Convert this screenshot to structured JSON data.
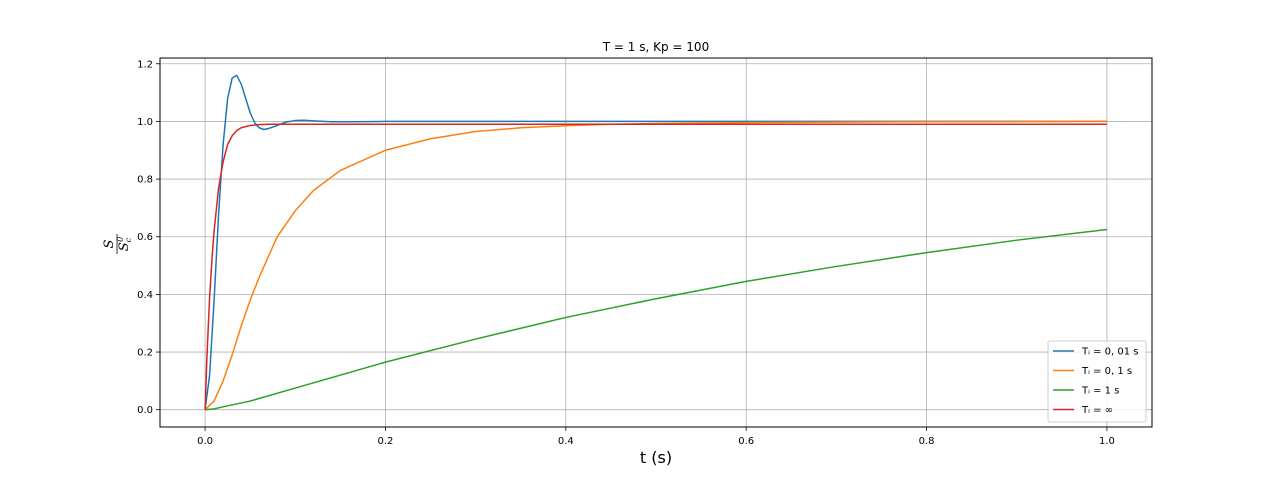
{
  "chart_data": {
    "type": "line",
    "title": "T = 1 s, Kp = 100",
    "xlabel": "t (s)",
    "ylabel": "S / S_c^0",
    "xlim": [
      -0.05,
      1.05
    ],
    "ylim": [
      -0.06,
      1.22
    ],
    "xticks": [
      0.0,
      0.2,
      0.4,
      0.6,
      0.8,
      1.0
    ],
    "xtick_labels": [
      "0.0",
      "0.2",
      "0.4",
      "0.6",
      "0.8",
      "1.0"
    ],
    "yticks": [
      0.0,
      0.2,
      0.4,
      0.6,
      0.8,
      1.0,
      1.2
    ],
    "ytick_labels": [
      "0.0",
      "0.2",
      "0.4",
      "0.6",
      "0.8",
      "1.0",
      "1.2"
    ],
    "grid": true,
    "legend_position": "lower-right",
    "series": [
      {
        "name": "T_i = 0,01 s",
        "legend_label": "Tᵢ = 0, 01 s",
        "color": "#1f77b4",
        "x": [
          0,
          0.005,
          0.01,
          0.015,
          0.02,
          0.025,
          0.03,
          0.035,
          0.04,
          0.045,
          0.05,
          0.055,
          0.06,
          0.065,
          0.07,
          0.08,
          0.09,
          0.1,
          0.11,
          0.12,
          0.14,
          0.16,
          0.2,
          0.3,
          0.5,
          1.0
        ],
        "y": [
          0,
          0.12,
          0.38,
          0.68,
          0.92,
          1.08,
          1.15,
          1.16,
          1.13,
          1.08,
          1.03,
          0.995,
          0.978,
          0.972,
          0.975,
          0.986,
          0.998,
          1.003,
          1.004,
          1.002,
          0.999,
          0.999,
          1.0,
          1.0,
          1.0,
          1.0
        ]
      },
      {
        "name": "T_i = 0,1 s",
        "legend_label": "Tᵢ = 0, 1 s",
        "color": "#ff7f0e",
        "x": [
          0,
          0.01,
          0.02,
          0.03,
          0.04,
          0.05,
          0.06,
          0.08,
          0.1,
          0.12,
          0.15,
          0.2,
          0.25,
          0.3,
          0.35,
          0.4,
          0.45,
          0.5,
          0.6,
          0.8,
          1.0
        ],
        "y": [
          0,
          0.03,
          0.1,
          0.19,
          0.29,
          0.38,
          0.46,
          0.6,
          0.69,
          0.76,
          0.83,
          0.9,
          0.94,
          0.965,
          0.978,
          0.985,
          0.99,
          0.993,
          0.996,
          0.999,
          1.0
        ]
      },
      {
        "name": "T_i = 1 s",
        "legend_label": "Tᵢ = 1 s",
        "color": "#2ca02c",
        "x": [
          0,
          0.01,
          0.02,
          0.05,
          0.1,
          0.2,
          0.3,
          0.4,
          0.5,
          0.6,
          0.7,
          0.8,
          0.9,
          1.0
        ],
        "y": [
          0,
          0.003,
          0.01,
          0.03,
          0.075,
          0.165,
          0.245,
          0.32,
          0.385,
          0.445,
          0.497,
          0.545,
          0.588,
          0.625
        ]
      },
      {
        "name": "T_i = ∞",
        "legend_label": "Tᵢ = ∞",
        "color": "#d62728",
        "x": [
          0,
          0.002,
          0.005,
          0.008,
          0.01,
          0.015,
          0.02,
          0.025,
          0.03,
          0.035,
          0.04,
          0.05,
          0.06,
          0.07,
          0.1,
          0.2,
          0.5,
          1.0
        ],
        "y": [
          0,
          0.18,
          0.39,
          0.54,
          0.62,
          0.77,
          0.86,
          0.92,
          0.95,
          0.968,
          0.978,
          0.986,
          0.989,
          0.99,
          0.99,
          0.99,
          0.99,
          0.99
        ]
      }
    ]
  }
}
